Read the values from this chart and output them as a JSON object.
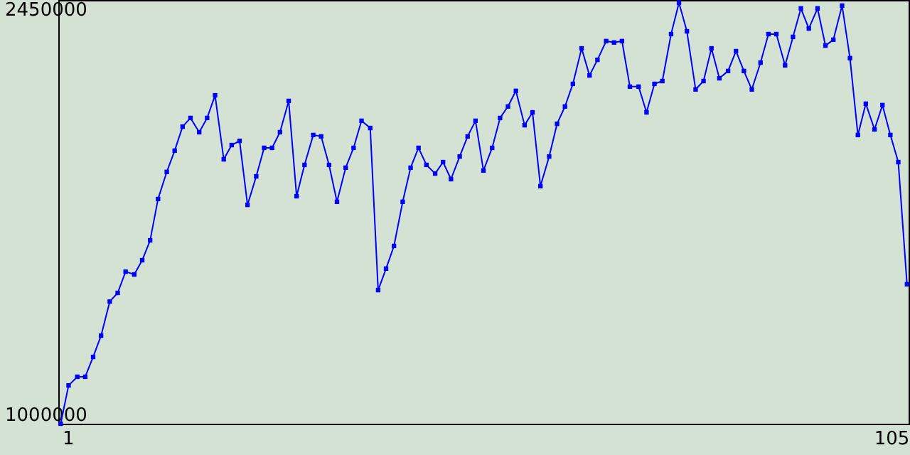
{
  "chart_data": {
    "type": "line",
    "x": [
      0.1,
      1.1,
      2.2,
      3.2,
      4.2,
      5.2,
      6.3,
      7.3,
      8.3,
      9.4,
      10.4,
      11.4,
      12.4,
      13.5,
      14.5,
      15.5,
      16.5,
      17.6,
      18.6,
      19.6,
      20.7,
      21.7,
      22.7,
      23.7,
      24.8,
      25.8,
      26.8,
      27.8,
      28.9,
      29.9,
      30.9,
      32.0,
      33.0,
      34.0,
      35.0,
      36.1,
      37.1,
      38.1,
      39.2,
      40.2,
      41.2,
      42.2,
      43.3,
      44.3,
      45.3,
      46.3,
      47.4,
      48.4,
      49.4,
      50.5,
      51.5,
      52.5,
      53.5,
      54.6,
      55.6,
      56.6,
      57.6,
      58.7,
      59.7,
      60.7,
      61.8,
      62.8,
      63.8,
      64.8,
      65.9,
      66.9,
      67.9,
      69.0,
      70.0,
      71.0,
      72.0,
      73.1,
      74.1,
      75.1,
      76.1,
      77.2,
      78.2,
      79.2,
      80.3,
      81.3,
      82.3,
      83.3,
      84.4,
      85.4,
      86.4,
      87.4,
      88.5,
      89.5,
      90.5,
      91.6,
      92.6,
      93.6,
      94.6,
      95.7,
      96.7,
      97.7,
      98.8,
      99.8,
      100.8,
      101.8,
      102.9,
      103.9,
      104.9,
      105.9,
      107.0
    ],
    "series": [
      {
        "color": "#0000ff",
        "values": [
          967000,
          1104000,
          1135000,
          1135000,
          1206000,
          1282000,
          1404000,
          1435000,
          1511000,
          1501000,
          1552000,
          1623000,
          1771000,
          1868000,
          1944000,
          2030000,
          2061000,
          2010000,
          2061000,
          2142000,
          1913000,
          1964000,
          1979000,
          1750000,
          1852000,
          1954000,
          1954000,
          2010000,
          2122000,
          1781000,
          1893000,
          2000000,
          1995000,
          1893000,
          1761000,
          1883000,
          1954000,
          2051000,
          2025000,
          1445000,
          1522000,
          1603000,
          1761000,
          1883000,
          1954000,
          1893000,
          1862000,
          1903000,
          1842000,
          1923000,
          1995000,
          2051000,
          1873000,
          1954000,
          2061000,
          2102000,
          2158000,
          2035000,
          2081000,
          1817000,
          1923000,
          2040000,
          2102000,
          2183000,
          2310000,
          2213000,
          2269000,
          2336000,
          2331000,
          2336000,
          2173000,
          2173000,
          2081000,
          2183000,
          2193000,
          2361000,
          2473000,
          2371000,
          2163000,
          2193000,
          2310000,
          2203000,
          2229000,
          2300000,
          2229000,
          2163000,
          2259000,
          2361000,
          2361000,
          2249000,
          2351000,
          2453000,
          2381000,
          2453000,
          2320000,
          2341000,
          2463000,
          2275000,
          2000000,
          2112000,
          2020000,
          2107000,
          2000000,
          1903000,
          1466000
        ]
      }
    ],
    "xlim": [
      -0.2,
      107.2
    ],
    "xticks": [
      1,
      105
    ],
    "ylim": [
      967000,
      2483000
    ],
    "yticks": [
      1000000,
      2450000
    ],
    "grid": false,
    "marker": "square",
    "line_style": "solid"
  }
}
